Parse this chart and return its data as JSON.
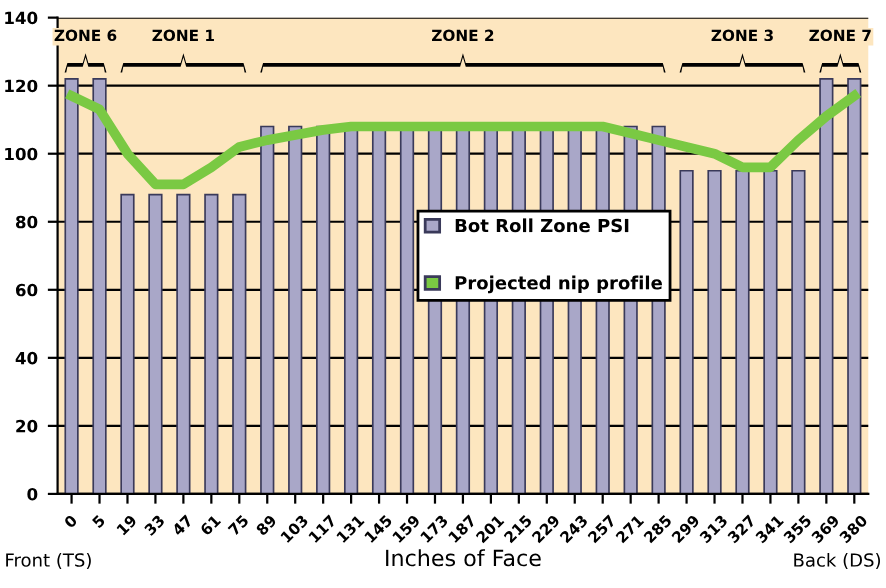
{
  "chart_data": {
    "type": "bar",
    "xlabel": "Inches of Face",
    "categories": [
      "0",
      "5",
      "19",
      "33",
      "47",
      "61",
      "75",
      "89",
      "103",
      "117",
      "131",
      "145",
      "159",
      "173",
      "187",
      "201",
      "215",
      "229",
      "243",
      "257",
      "271",
      "285",
      "299",
      "313",
      "327",
      "341",
      "355",
      "369",
      "380"
    ],
    "series": [
      {
        "name": "Bot Roll Zone PSI",
        "color": "#a9a7c8",
        "values": [
          122,
          122,
          88,
          88,
          88,
          88,
          88,
          108,
          108,
          108,
          108,
          108,
          108,
          108,
          108,
          108,
          108,
          108,
          108,
          108,
          108,
          108,
          95,
          95,
          95,
          95,
          95,
          122,
          122
        ]
      },
      {
        "name": "Projected nip profile",
        "type": "line",
        "color": "#7ac943",
        "values": [
          117,
          113,
          100,
          91,
          91,
          96,
          102,
          104,
          105.5,
          107,
          108,
          108,
          108,
          108,
          108,
          108,
          108,
          108,
          108,
          108,
          106,
          104,
          102,
          100,
          96,
          96,
          104,
          111,
          117
        ]
      }
    ],
    "ylim": [
      0,
      140
    ],
    "yticks": [
      0,
      20,
      40,
      60,
      80,
      100,
      120,
      140
    ],
    "grid": "y",
    "legend": "center",
    "marker": "none",
    "line_style": "solid",
    "annotations": [
      "ZONE 6",
      "ZONE 1",
      "ZONE 2",
      "ZONE 3",
      "ZONE 7",
      "Front (TS)",
      "Back (DS)"
    ]
  }
}
